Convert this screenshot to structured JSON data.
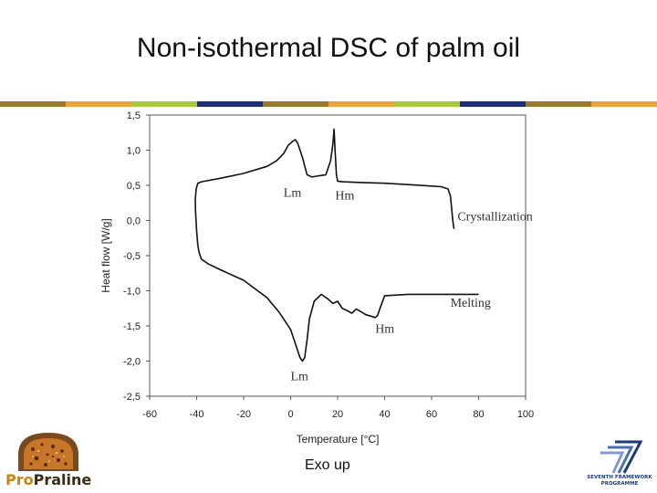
{
  "slide": {
    "title": "Non-isothermal DSC of palm oil",
    "caption": "Exo up",
    "stripe_colors": [
      "#9b7b2d",
      "#e8a33d",
      "#a7c93c",
      "#1b2f7a",
      "#9b7b2d",
      "#e8a33d",
      "#a7c93c",
      "#1b2f7a",
      "#9b7b2d",
      "#e8a33d"
    ]
  },
  "logos": {
    "left": {
      "pro": "Pro",
      "rest": "Praline"
    },
    "right": {
      "line1": "SEVENTH FRAMEWORK",
      "line2": "PROGRAMME",
      "icon": "fp7-icon"
    }
  },
  "chart_data": {
    "type": "line",
    "xlabel": "Temperature [°C]",
    "ylabel": "Heat flow [W/g]",
    "xlim": [
      -60,
      100
    ],
    "ylim": [
      -2.5,
      1.5
    ],
    "x_ticks": [
      -60,
      -40,
      -20,
      0,
      20,
      40,
      60,
      80,
      100
    ],
    "x_tick_labels": [
      "-60",
      "-40",
      "-20",
      "0",
      "20",
      "40",
      "60",
      "80",
      "100"
    ],
    "y_ticks": [
      1.5,
      1.0,
      0.5,
      0.0,
      -0.5,
      -1.0,
      -1.5,
      -2.0,
      -2.5
    ],
    "y_tick_labels": [
      "1,5",
      "1,0",
      "0,5",
      "0,0",
      "-0,5",
      "-1,0",
      "-1,5",
      "-2,0",
      "-2,5"
    ],
    "grid": false,
    "line_color": "#111111",
    "series": [
      {
        "name": "Crystallization",
        "x": [
          -40.5,
          -40.6,
          -40.2,
          -39.5,
          -38,
          -30,
          -20,
          -10,
          -6,
          -3,
          -1,
          0,
          1,
          2,
          3,
          5,
          7,
          9,
          11,
          13,
          15,
          17,
          18,
          18.5,
          19,
          19.5,
          20,
          22,
          30,
          40,
          50,
          60,
          64,
          67,
          68,
          68.5,
          69,
          69.5
        ],
        "y": [
          0.15,
          0.3,
          0.45,
          0.53,
          0.55,
          0.6,
          0.67,
          0.77,
          0.85,
          0.95,
          1.07,
          1.1,
          1.13,
          1.15,
          1.1,
          0.9,
          0.65,
          0.62,
          0.63,
          0.64,
          0.65,
          0.85,
          1.1,
          1.3,
          0.95,
          0.65,
          0.56,
          0.55,
          0.54,
          0.53,
          0.51,
          0.49,
          0.48,
          0.45,
          0.35,
          0.18,
          0.0,
          -0.12
        ]
      },
      {
        "name": "Melting",
        "x": [
          -40.5,
          -40,
          -39.5,
          -39,
          -38,
          -35,
          -30,
          -20,
          -10,
          -5,
          0,
          2,
          4,
          5,
          6,
          7,
          8,
          10,
          13,
          16,
          18,
          20,
          22,
          24,
          26,
          28,
          30,
          32,
          34,
          36,
          37,
          38,
          40,
          50,
          60,
          70,
          80
        ],
        "y": [
          0.15,
          -0.15,
          -0.35,
          -0.45,
          -0.55,
          -0.62,
          -0.7,
          -0.85,
          -1.1,
          -1.3,
          -1.55,
          -1.75,
          -1.95,
          -2.0,
          -1.95,
          -1.7,
          -1.4,
          -1.15,
          -1.05,
          -1.12,
          -1.18,
          -1.15,
          -1.25,
          -1.28,
          -1.32,
          -1.26,
          -1.3,
          -1.34,
          -1.36,
          -1.38,
          -1.35,
          -1.25,
          -1.07,
          -1.05,
          -1.05,
          -1.05,
          -1.05
        ]
      }
    ],
    "annotations": [
      {
        "text": "Lm",
        "x": -3,
        "y": 0.34
      },
      {
        "text": "Hm",
        "x": 19,
        "y": 0.3
      },
      {
        "text": "Crystallization",
        "x": 71,
        "y": 0.0
      },
      {
        "text": "Melting",
        "x": 68,
        "y": -1.23
      },
      {
        "text": "Hm",
        "x": 36,
        "y": -1.6
      },
      {
        "text": "Lm",
        "x": 0,
        "y": -2.27
      }
    ]
  }
}
